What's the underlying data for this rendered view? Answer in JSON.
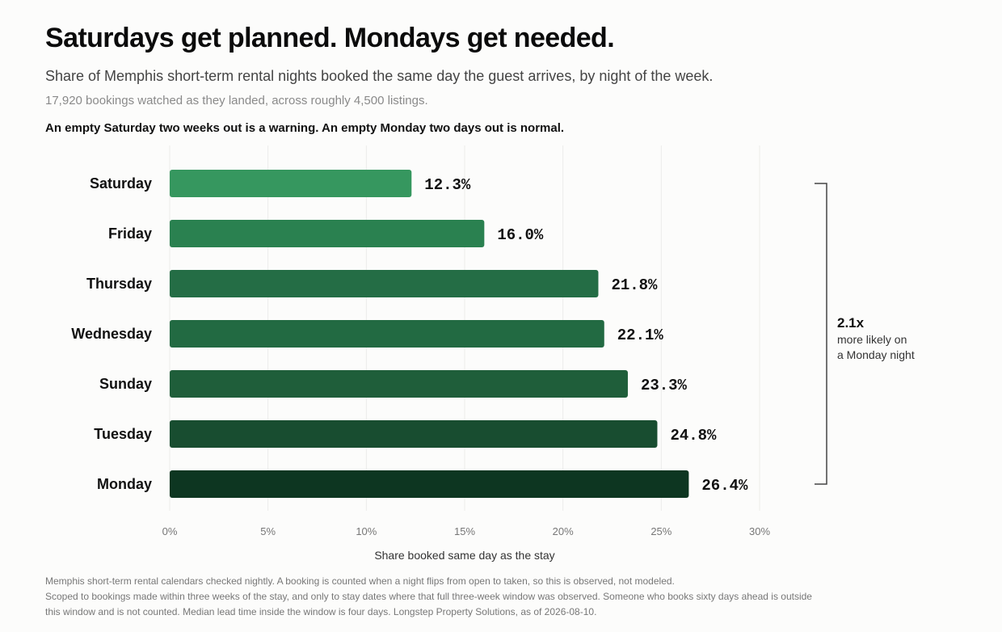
{
  "header": {
    "title": "Saturdays get planned. Mondays get needed.",
    "subtitle": "Share of Memphis short-term rental nights booked the same day the guest arrives, by night of the week.",
    "meta": "17,920 bookings watched as they landed, across roughly 4,500 listings.",
    "kicker": "An empty Saturday two weeks out is a warning. An empty Monday two days out is normal."
  },
  "chart_data": {
    "type": "bar",
    "orientation": "horizontal",
    "categories": [
      "Saturday",
      "Friday",
      "Thursday",
      "Wednesday",
      "Sunday",
      "Tuesday",
      "Monday"
    ],
    "values": [
      12.3,
      16.0,
      21.8,
      22.1,
      23.3,
      24.8,
      26.4
    ],
    "value_labels": [
      "12.3%",
      "16.0%",
      "21.8%",
      "22.1%",
      "23.3%",
      "24.8%",
      "26.4%"
    ],
    "bar_colors": [
      "#36975f",
      "#2a8150",
      "#246d45",
      "#226a42",
      "#1f5e3a",
      "#184d30",
      "#0d3621"
    ],
    "xlabel": "Share booked same day as the stay",
    "xlim": [
      0,
      30
    ],
    "xticks": [
      0,
      5,
      10,
      15,
      20,
      25,
      30
    ],
    "xtick_labels": [
      "0%",
      "5%",
      "10%",
      "15%",
      "20%",
      "25%",
      "30%"
    ],
    "grid": true
  },
  "annotation": {
    "ratio": "2.1x",
    "text_line1": "more likely on",
    "text_line2": "a Monday night"
  },
  "footnote": {
    "line1": "Memphis short-term rental calendars checked nightly. A booking is counted when a night flips from open to taken, so this is observed, not modeled.",
    "line2": "Scoped to bookings made within three weeks of the stay, and only to stay dates where that full three-week window was observed. Someone who books sixty days ahead is outside this window and is not counted. Median lead time inside the window is four days. Longstep Property Solutions, as of 2026-08-10."
  }
}
